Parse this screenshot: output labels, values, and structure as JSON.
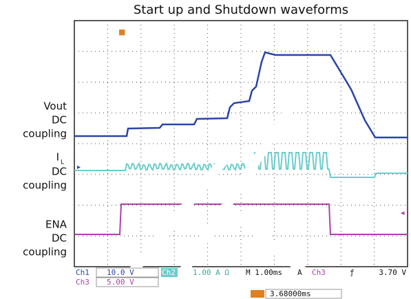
{
  "title": "Start up and Shutdown waveforms",
  "labels": {
    "vout": [
      "Vout",
      "DC",
      "coupling"
    ],
    "il": {
      "main": "I",
      "sub": "L",
      "lines": [
        "DC",
        "coupling"
      ]
    },
    "ena": [
      "ENA",
      "DC",
      "coupling"
    ]
  },
  "readout": {
    "ch1": "Ch1",
    "ch1_scale": "10.0 V",
    "ch2": "Ch2",
    "ch2_scale": "1.00 A Ω",
    "timebase": "M 1.00ms",
    "trigger_mode": "A",
    "trigger_ch": "Ch3",
    "trigger_slope": "ƒ",
    "trigger_level": "3.70 V",
    "ch3": "Ch3",
    "ch3_scale": "5.00 V",
    "position": "3.68000ms"
  }
}
